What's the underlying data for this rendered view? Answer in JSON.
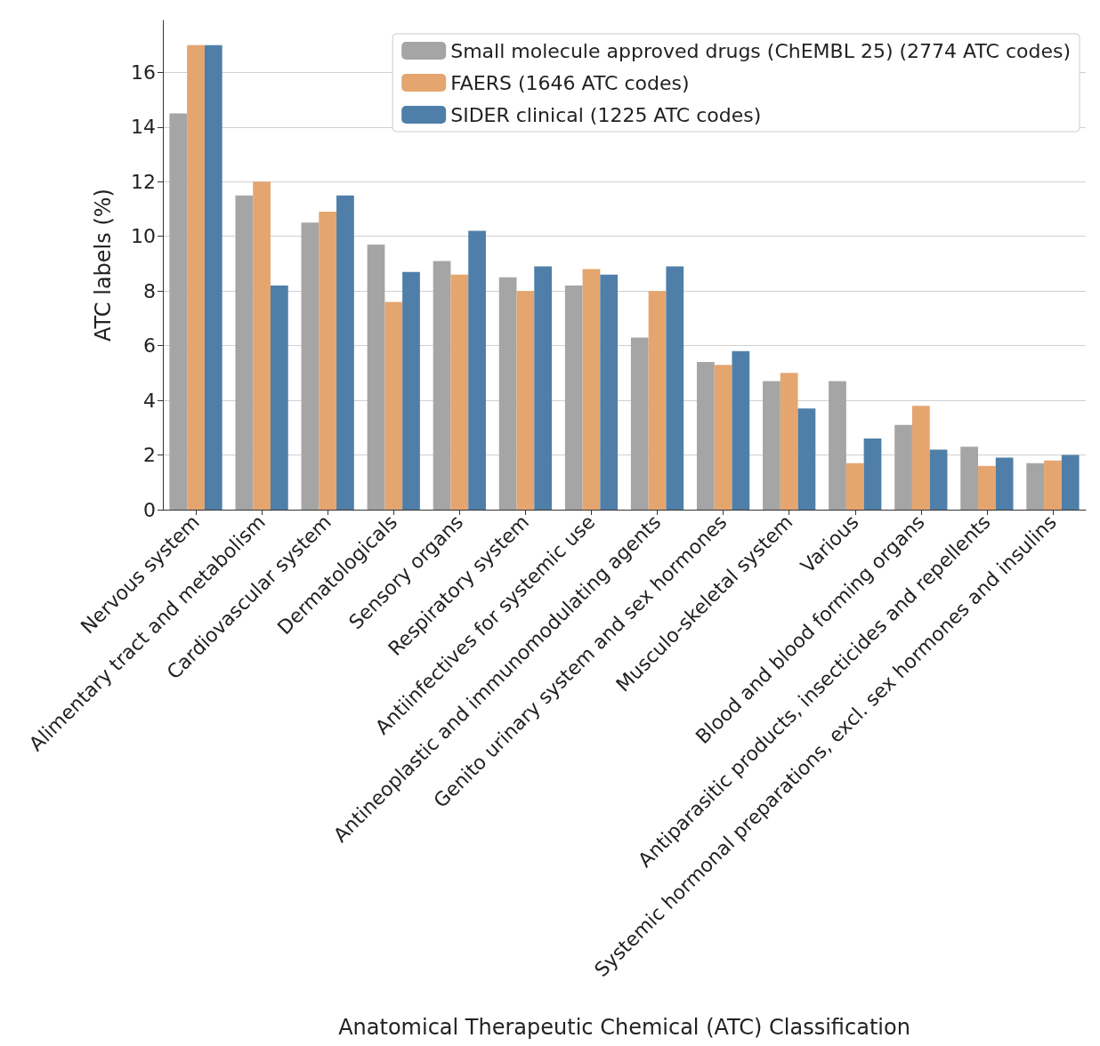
{
  "chart_data": {
    "type": "bar",
    "xlabel": "Anatomical Therapeutic Chemical (ATC) Classification",
    "ylabel": "ATC labels (%)",
    "categories": [
      "Nervous system",
      "Alimentary tract and metabolism",
      "Cardiovascular system",
      "Dermatologicals",
      "Sensory organs",
      "Respiratory system",
      "Antiinfectives for systemic use",
      "Antineoplastic and immunomodulating agents",
      "Genito urinary system and sex hormones",
      "Musculo-skeletal system",
      "Various",
      "Blood and blood forming organs",
      "Antiparasitic products, insecticides and repellents",
      "Systemic hormonal preparations, excl. sex hormones and insulins"
    ],
    "series": [
      {
        "name": "Small molecule approved drugs (ChEMBL 25) (2774 ATC codes)",
        "color": "#a5a5a5",
        "values": [
          14.5,
          11.5,
          10.5,
          9.7,
          9.1,
          8.5,
          8.2,
          6.3,
          5.4,
          4.7,
          4.7,
          3.1,
          2.3,
          1.7
        ]
      },
      {
        "name": "FAERS (1646 ATC codes)",
        "color": "#e5a56f",
        "values": [
          17.0,
          12.0,
          10.9,
          7.6,
          8.6,
          8.0,
          8.8,
          8.0,
          5.3,
          5.0,
          1.7,
          3.8,
          1.6,
          1.8
        ]
      },
      {
        "name": "SIDER clinical (1225 ATC codes)",
        "color": "#4f7fa8",
        "values": [
          17.0,
          8.2,
          11.5,
          8.7,
          10.2,
          8.9,
          8.6,
          8.9,
          5.8,
          3.7,
          2.6,
          2.2,
          1.9,
          2.0
        ]
      }
    ],
    "ylim": [
      0,
      17.9
    ],
    "yticks": [
      0,
      2,
      4,
      6,
      8,
      10,
      12,
      14,
      16
    ],
    "grid": "y",
    "legend": "top right"
  }
}
